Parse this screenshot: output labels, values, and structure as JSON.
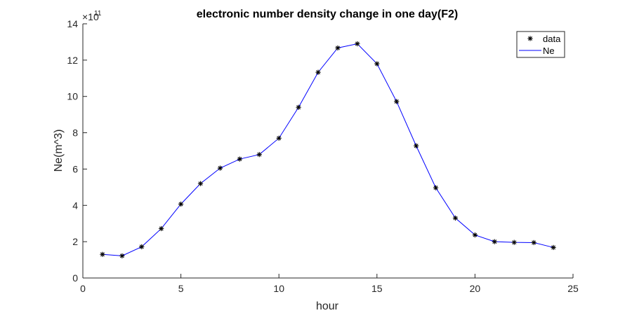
{
  "chart_data": {
    "type": "line",
    "title": "electronic number density change in one day(F2)",
    "xlabel": "hour",
    "ylabel": "Ne(m^3)",
    "xlim": [
      0,
      25
    ],
    "ylim": [
      0,
      14
    ],
    "xticks": [
      "0",
      "5",
      "10",
      "15",
      "20",
      "25"
    ],
    "yticks": [
      "0",
      "2",
      "4",
      "6",
      "8",
      "10",
      "12",
      "14"
    ],
    "y_multiplier_base": "×10",
    "y_multiplier_exp": "11",
    "grid": false,
    "legend_position": "top-right",
    "x": [
      1,
      2,
      3,
      4,
      5,
      6,
      7,
      8,
      9,
      10,
      11,
      12,
      13,
      14,
      15,
      16,
      17,
      18,
      19,
      20,
      21,
      22,
      23,
      24
    ],
    "series": [
      {
        "name": "data",
        "style": "markers",
        "marker": "*",
        "color": "#000000",
        "values": [
          1.3,
          1.22,
          1.72,
          2.72,
          4.07,
          5.2,
          6.05,
          6.55,
          6.8,
          7.7,
          9.4,
          11.33,
          12.67,
          12.9,
          11.8,
          9.72,
          7.28,
          4.97,
          3.3,
          2.37,
          2.0,
          1.96,
          1.95,
          1.68
        ]
      },
      {
        "name": "Ne",
        "style": "line",
        "color": "#0000ff",
        "values": [
          1.3,
          1.22,
          1.72,
          2.72,
          4.07,
          5.2,
          6.05,
          6.55,
          6.8,
          7.7,
          9.4,
          11.33,
          12.67,
          12.9,
          11.8,
          9.72,
          7.28,
          4.97,
          3.3,
          2.37,
          2.0,
          1.96,
          1.95,
          1.68
        ]
      }
    ]
  }
}
